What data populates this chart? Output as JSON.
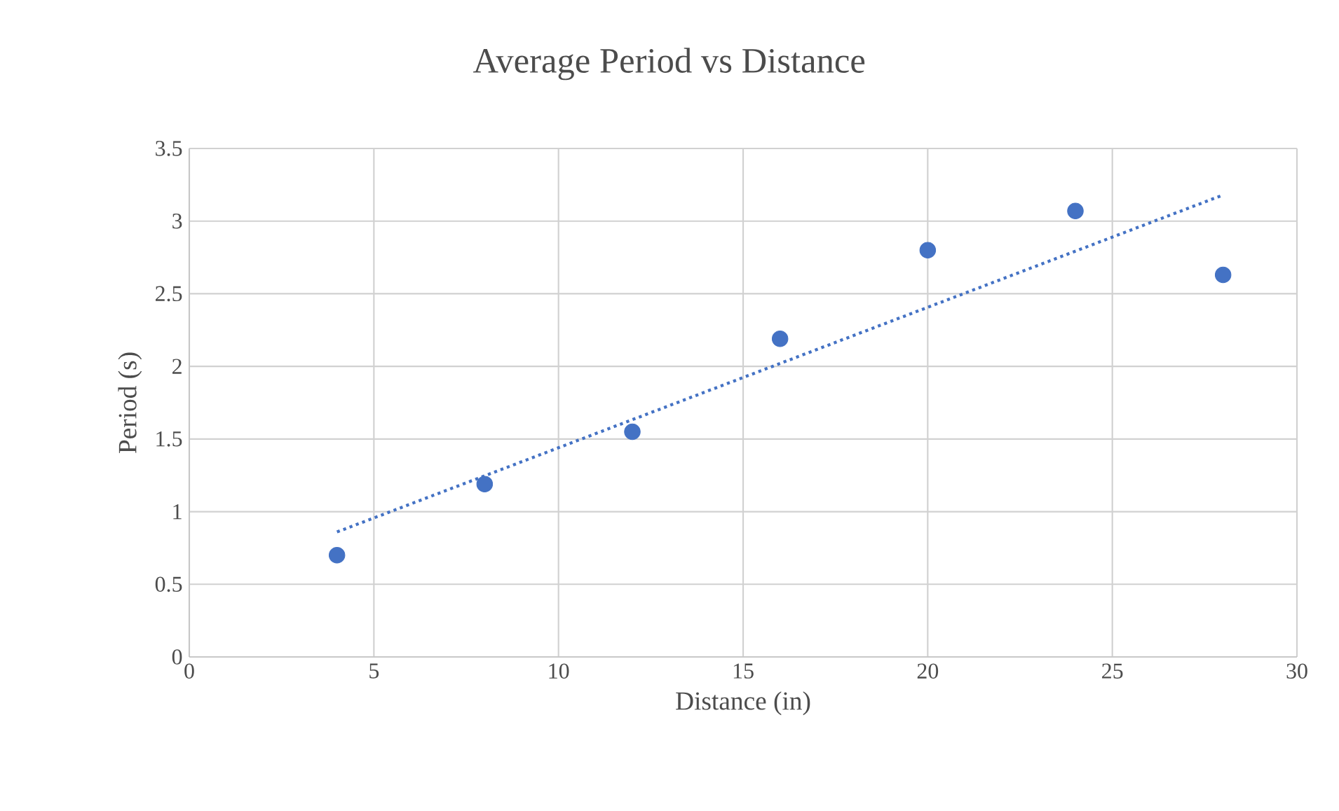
{
  "chart_data": {
    "type": "scatter",
    "title": "Average Period vs Distance",
    "xlabel": "Distance (in)",
    "ylabel": "Period (s)",
    "xlim": [
      0,
      30
    ],
    "ylim": [
      0,
      3.5
    ],
    "xticks": [
      0,
      5,
      10,
      15,
      20,
      25,
      30
    ],
    "yticks": [
      0,
      0.5,
      1,
      1.5,
      2,
      2.5,
      3,
      3.5
    ],
    "grid": true,
    "marker": "circle",
    "series": [
      {
        "color": "#4472c4",
        "x": [
          4,
          8,
          12,
          16,
          20,
          24,
          28
        ],
        "values": [
          0.7,
          1.19,
          1.55,
          2.19,
          2.8,
          3.07,
          2.63
        ]
      },
      {
        "type": "line",
        "color": "#4472c4",
        "x": [
          4,
          28
        ],
        "values": [
          0.86,
          3.18
        ],
        "line_style": "dotted",
        "marker": "none"
      }
    ]
  }
}
